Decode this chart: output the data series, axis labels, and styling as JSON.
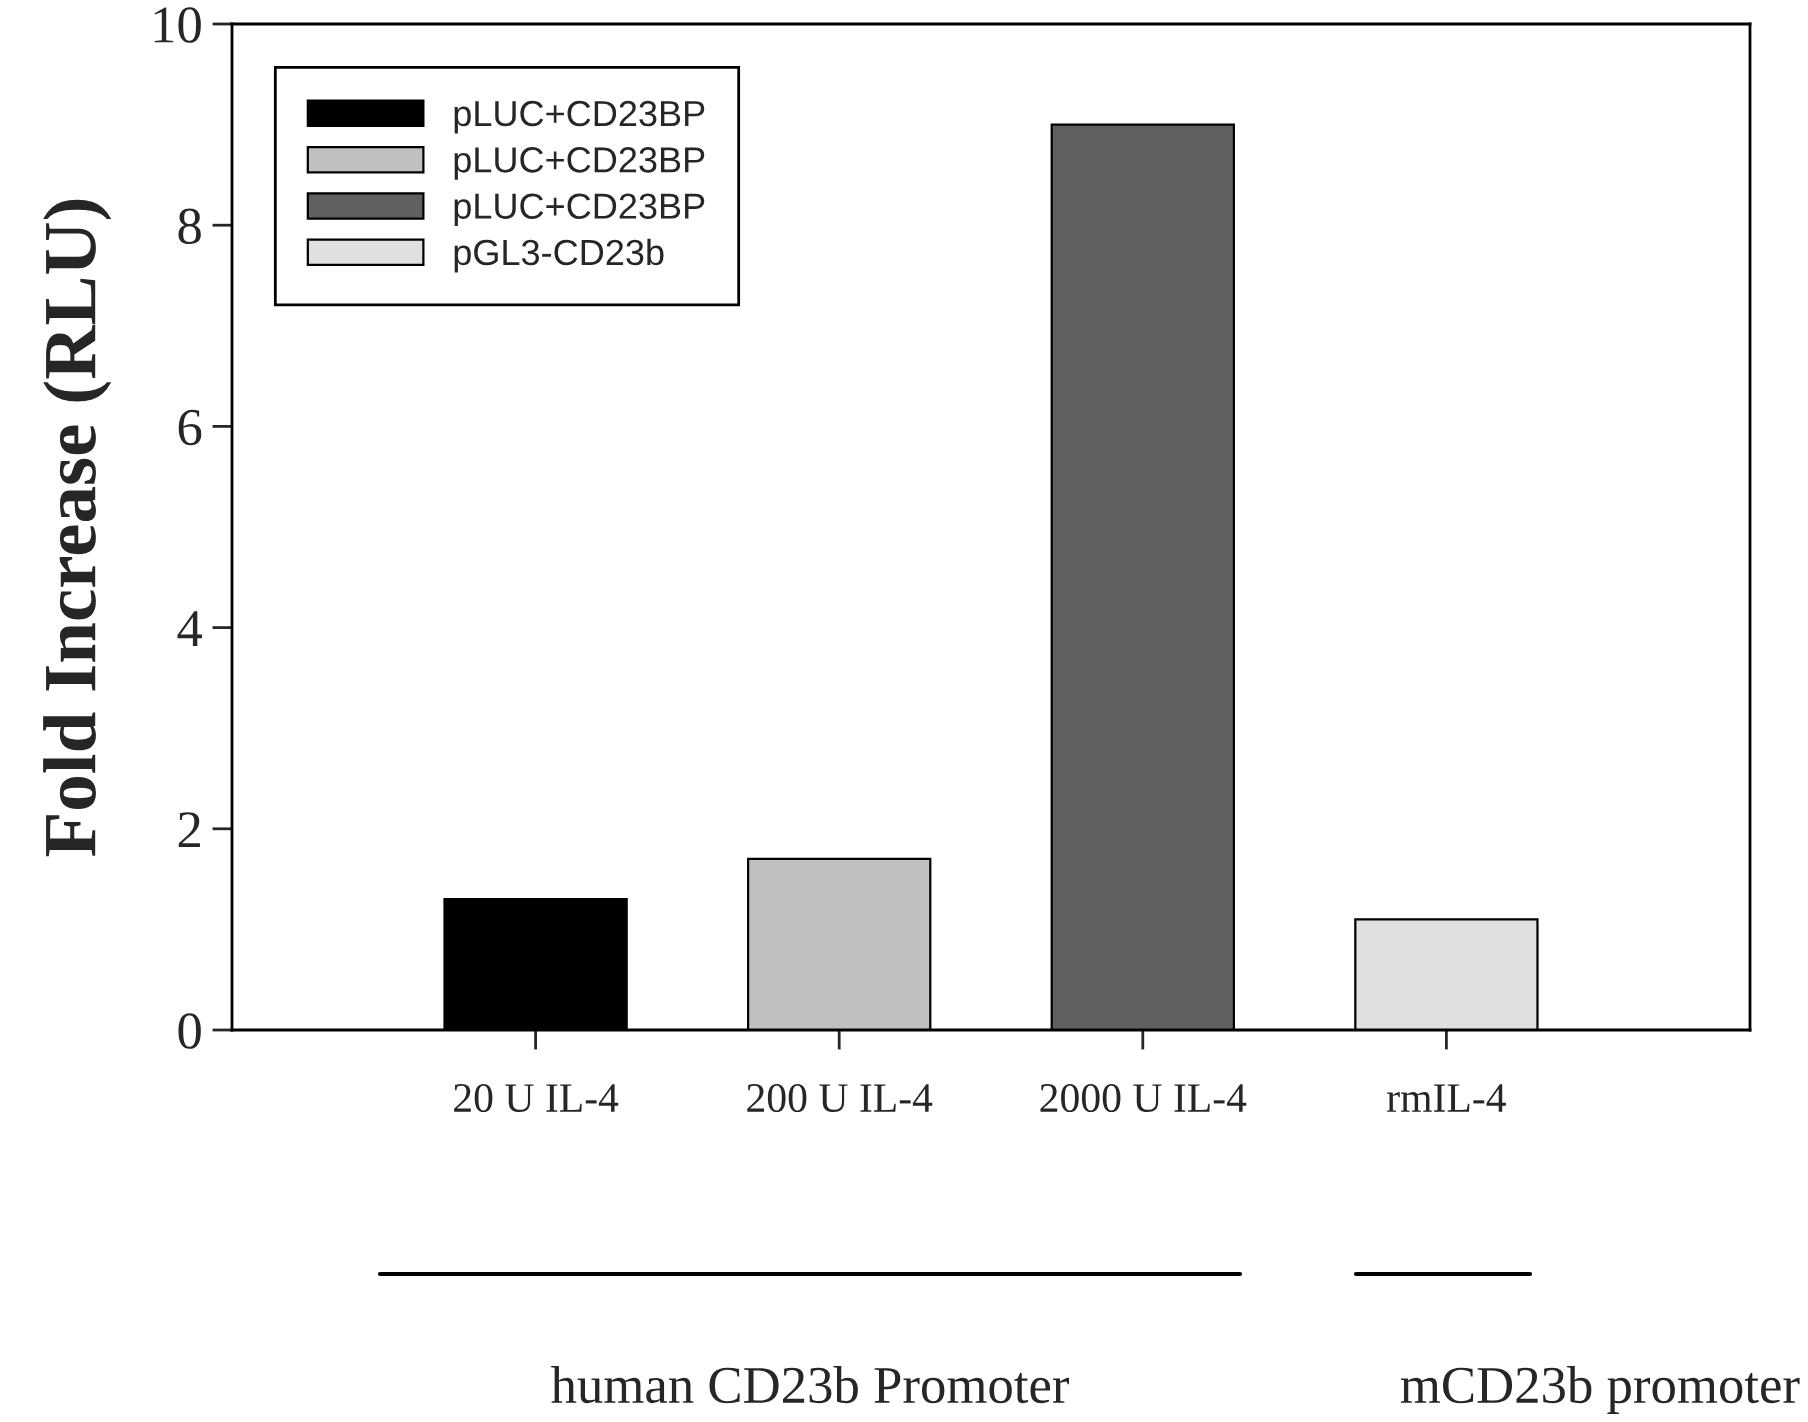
{
  "chart_data": {
    "type": "bar",
    "ylabel": "Fold Increase (RLU)",
    "categories": [
      "20 U IL-4",
      "200 U IL-4",
      "2000 U IL-4",
      "rmIL-4"
    ],
    "series": [
      {
        "name": "pLUC+CD23BP",
        "color": "#000000",
        "values": [
          1.3,
          null,
          null,
          null
        ]
      },
      {
        "name": "pLUC+CD23BP",
        "color": "#c0c0c0",
        "values": [
          null,
          1.7,
          null,
          null
        ]
      },
      {
        "name": "pLUC+CD23BP",
        "color": "#606060",
        "values": [
          null,
          null,
          9.0,
          null
        ]
      },
      {
        "name": "pGL3-CD23b",
        "color": "#e0e0e0",
        "values": [
          null,
          null,
          null,
          1.1
        ]
      }
    ],
    "ylim": [
      0,
      10
    ],
    "yticks": [
      0,
      2,
      4,
      6,
      8,
      10
    ],
    "grid": false,
    "legend": "top left",
    "annotations": [
      "human CD23b Promoter",
      "mCD23b promoter"
    ]
  }
}
